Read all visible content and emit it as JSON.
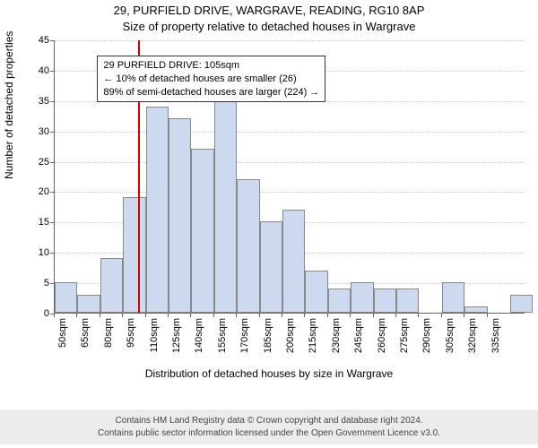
{
  "title_line1": "29, PURFIELD DRIVE, WARGRAVE, READING, RG10 8AP",
  "title_line2": "Size of property relative to detached houses in Wargrave",
  "ylabel": "Number of detached properties",
  "xlabel": "Distribution of detached houses by size in Wargrave",
  "footer_line1": "Contains HM Land Registry data © Crown copyright and database right 2024.",
  "footer_line2": "Contains public sector information licensed under the Open Government Licence v3.0.",
  "chart": {
    "type": "histogram",
    "xlim": [
      50,
      360
    ],
    "ylim": [
      0,
      45
    ],
    "ytick_step": 5,
    "xtick_start": 50,
    "xtick_step": 15,
    "xtick_unit": "sqm",
    "bin_width": 15,
    "bar_color": "#ccd9ee",
    "bar_border_color": "#888888",
    "grid_color": "#c9c9c9",
    "background_color": "#ffffff",
    "refline_x": 105,
    "refline_color": "#d40000",
    "title_fontsize": 13,
    "label_fontsize": 12,
    "tick_fontsize": 11,
    "bins": [
      {
        "lo": 50,
        "count": 5
      },
      {
        "lo": 65,
        "count": 3
      },
      {
        "lo": 80,
        "count": 9
      },
      {
        "lo": 95,
        "count": 19
      },
      {
        "lo": 110,
        "count": 34
      },
      {
        "lo": 125,
        "count": 32
      },
      {
        "lo": 140,
        "count": 27
      },
      {
        "lo": 155,
        "count": 35
      },
      {
        "lo": 170,
        "count": 22
      },
      {
        "lo": 185,
        "count": 15
      },
      {
        "lo": 200,
        "count": 17
      },
      {
        "lo": 215,
        "count": 7
      },
      {
        "lo": 230,
        "count": 4
      },
      {
        "lo": 245,
        "count": 5
      },
      {
        "lo": 260,
        "count": 4
      },
      {
        "lo": 275,
        "count": 4
      },
      {
        "lo": 290,
        "count": 0
      },
      {
        "lo": 305,
        "count": 5
      },
      {
        "lo": 320,
        "count": 1
      },
      {
        "lo": 335,
        "count": 0
      },
      {
        "lo": 350,
        "count": 3
      }
    ],
    "annotation": {
      "lines": [
        "29 PURFIELD DRIVE: 105sqm",
        "← 10% of detached houses are smaller (26)",
        "89% of semi-detached houses are larger (224) →"
      ],
      "border_color": "#333333",
      "bg": "#ffffff",
      "fontsize": 11,
      "pos_value_x": 78,
      "pos_value_y": 42.5
    }
  }
}
